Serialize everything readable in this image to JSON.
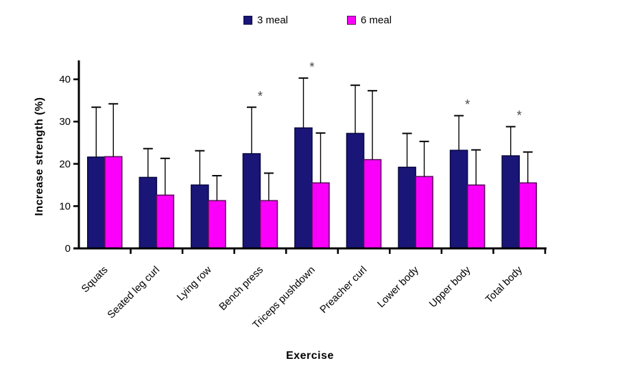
{
  "chart_data": {
    "type": "bar",
    "title": "",
    "xlabel": "Exercise",
    "ylabel": "Increase strength (%)",
    "categories": [
      "Squats",
      "Seated leg curl",
      "Lying row",
      "Bench press",
      "Triceps pushdown",
      "Preacher curl",
      "Lower body",
      "Upper body",
      "Total body"
    ],
    "series": [
      {
        "name": "3 meal",
        "color": "#1a1678",
        "border_color": "#0a0a46",
        "values": [
          21.6,
          16.8,
          15.0,
          22.4,
          28.5,
          27.2,
          19.2,
          23.2,
          21.9
        ],
        "error_bars": [
          11.8,
          6.8,
          8.1,
          11.0,
          11.8,
          11.4,
          8.0,
          8.2,
          6.9
        ]
      },
      {
        "name": "6 meal",
        "color": "#fa00fa",
        "border_color": "#5c0a5c",
        "values": [
          21.7,
          12.6,
          11.3,
          11.3,
          15.5,
          21.0,
          17.0,
          15.0,
          15.5
        ],
        "error_bars": [
          12.5,
          8.7,
          5.9,
          6.5,
          11.8,
          16.3,
          8.3,
          8.3,
          7.3
        ]
      }
    ],
    "significant": [
      false,
      false,
      false,
      true,
      true,
      false,
      false,
      true,
      true
    ],
    "significance_marker": "*",
    "yticks": [
      0,
      10,
      20,
      30,
      40
    ],
    "ylim": [
      0,
      44
    ],
    "grid": false,
    "legend_position": "top-center",
    "error_bars_shown": true
  },
  "style": {
    "axis_color": "#000000",
    "error_bar_color": "#000000",
    "asterisk_color": "#4a4a4a",
    "text_color": "#000000",
    "background": "#ffffff"
  }
}
